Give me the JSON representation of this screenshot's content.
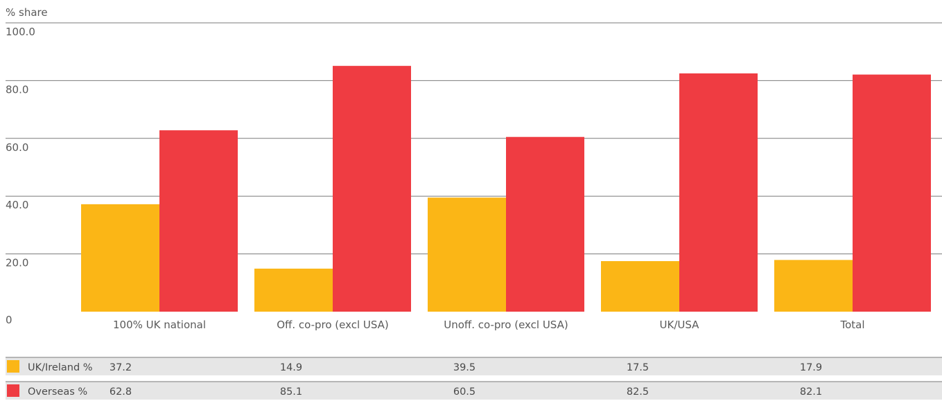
{
  "chart_data": {
    "type": "bar",
    "ylabel": "% share",
    "ylim": [
      0,
      100
    ],
    "yticks": [
      "100.0",
      "80.0",
      "60.0",
      "40.0",
      "20.0",
      "0"
    ],
    "ytick_values": [
      100,
      80,
      60,
      40,
      20,
      0
    ],
    "categories": [
      "100% UK national",
      "Off. co-pro (excl USA)",
      "Unoff. co-pro (excl USA)",
      "UK/USA",
      "Total"
    ],
    "series": [
      {
        "name": "UK/Ireland %",
        "color": "#FBB616",
        "values": [
          37.2,
          14.9,
          39.5,
          17.5,
          17.9
        ],
        "labels": [
          "37.2",
          "14.9",
          "39.5",
          "17.5",
          "17.9"
        ]
      },
      {
        "name": "Overseas %",
        "color": "#EF3C42",
        "values": [
          62.8,
          85.1,
          60.5,
          82.5,
          82.1
        ],
        "labels": [
          "62.8",
          "85.1",
          "60.5",
          "82.5",
          "82.1"
        ]
      }
    ],
    "grid": true,
    "legend": "table-below"
  },
  "colors": {
    "grid": "#7a7a7a",
    "table_bg": "#e6e6e6",
    "text": "#5a5a5a"
  }
}
